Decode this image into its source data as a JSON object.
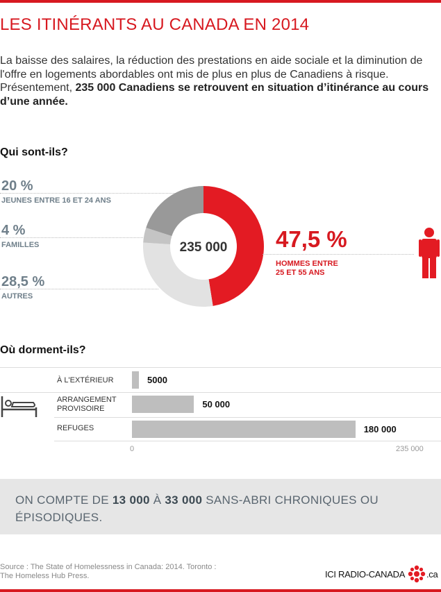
{
  "title": "LES ITINÉRANTS AU CANADA EN 2014",
  "intro": {
    "text": "La baisse des salaires, la réduction des prestations en aide sociale et la diminution de l'offre en logements abordables ont mis de plus en plus de Canadiens à risque. Présentement, ",
    "bold": "235 000 Canadiens se retrouvent en situation d’itinérance au cours d’une année."
  },
  "section_who": "Qui sont-ils?",
  "section_where": "Où dorment-ils?",
  "donut_center": "235 000",
  "groups": [
    {
      "pct": "20 %",
      "label": "JEUNES ENTRE 16 ET 24 ANS"
    },
    {
      "pct": "4 %",
      "label": "FAMILLES"
    },
    {
      "pct": "28,5 %",
      "label": "AUTRES"
    }
  ],
  "highlight": {
    "pct": "47,5 %",
    "label_line1": "HOMMES ENTRE",
    "label_line2": "25 ET 55 ANS"
  },
  "bars": [
    {
      "label_line1": "À L'EXTÉRIEUR",
      "label_line2": "",
      "display": "5000"
    },
    {
      "label_line1": "ARRANGEMENT",
      "label_line2": "PROVISOIRE",
      "display": "50 000"
    },
    {
      "label_line1": "REFUGES",
      "label_line2": "",
      "display": "180 000"
    }
  ],
  "axis": {
    "min_label": "0",
    "max_label": "235 000"
  },
  "box": {
    "p1": "On compte de ",
    "b1": "13 000",
    "p2": " à ",
    "b2": "33 000",
    "p3": " sans-abri chroniques ou épisodiques."
  },
  "source": {
    "line1": "Source : The State of Homelessness in Canada: 2014. Toronto :",
    "line2": "The Homeless Hub Press."
  },
  "logo": {
    "text": "ICI RADIO-CANADA",
    "suffix": ".ca"
  },
  "colors": {
    "accent": "#d71920",
    "slate": "#6f7f8a",
    "bar": "#bebebe"
  },
  "chart_data": [
    {
      "type": "pie",
      "categories": [
        "HOMMES ENTRE 25 ET 55 ANS",
        "AUTRES",
        "FAMILLES",
        "JEUNES ENTRE 16 ET 24 ANS"
      ],
      "values": [
        47.5,
        28.5,
        4,
        20
      ],
      "colors": [
        "#e31b23",
        "#e2e2e2",
        "#c4c4c4",
        "#999999"
      ],
      "total_label": "235 000"
    },
    {
      "type": "bar",
      "orientation": "horizontal",
      "categories": [
        "À L'EXTÉRIEUR",
        "ARRANGEMENT PROVISOIRE",
        "REFUGES"
      ],
      "values": [
        5000,
        50000,
        180000
      ],
      "xlim": [
        0,
        235000
      ]
    }
  ]
}
